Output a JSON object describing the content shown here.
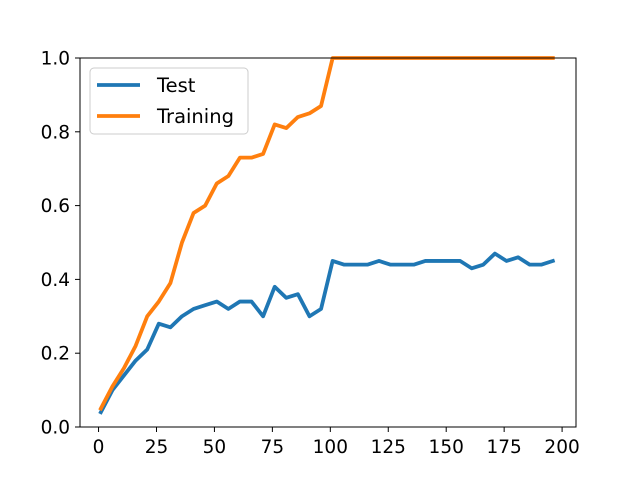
{
  "chart_data": {
    "type": "line",
    "xlim": [
      -8,
      206
    ],
    "ylim": [
      0,
      1
    ],
    "x_ticks": [
      0,
      25,
      50,
      75,
      100,
      125,
      150,
      175,
      200
    ],
    "x_tick_labels": [
      "0",
      "25",
      "50",
      "75",
      "100",
      "125",
      "150",
      "175",
      "200"
    ],
    "y_ticks": [
      0,
      0.2,
      0.4,
      0.6,
      0.8,
      1.0
    ],
    "y_tick_labels": [
      "0.0",
      "0.2",
      "0.4",
      "0.6",
      "0.8",
      "1.0"
    ],
    "grid": false,
    "legend_position": "top-left",
    "series": [
      {
        "name": "Test",
        "color": "#1f77b4",
        "x": [
          1,
          6,
          11,
          16,
          21,
          26,
          31,
          36,
          41,
          46,
          51,
          56,
          61,
          66,
          71,
          76,
          81,
          86,
          91,
          96,
          101,
          106,
          111,
          116,
          121,
          126,
          131,
          136,
          141,
          146,
          151,
          156,
          161,
          166,
          171,
          176,
          181,
          186,
          191,
          196
        ],
        "y": [
          0.04,
          0.1,
          0.14,
          0.18,
          0.21,
          0.28,
          0.27,
          0.3,
          0.32,
          0.33,
          0.34,
          0.32,
          0.34,
          0.34,
          0.3,
          0.38,
          0.35,
          0.36,
          0.3,
          0.32,
          0.45,
          0.44,
          0.44,
          0.44,
          0.45,
          0.44,
          0.44,
          0.44,
          0.45,
          0.45,
          0.45,
          0.45,
          0.43,
          0.44,
          0.47,
          0.45,
          0.46,
          0.44,
          0.44,
          0.45
        ]
      },
      {
        "name": "Training",
        "color": "#ff7f0e",
        "x": [
          1,
          6,
          11,
          16,
          21,
          26,
          31,
          36,
          41,
          46,
          51,
          56,
          61,
          66,
          71,
          76,
          81,
          86,
          91,
          96,
          101,
          106,
          111,
          116,
          121,
          126,
          131,
          136,
          141,
          146,
          151,
          156,
          161,
          166,
          171,
          176,
          181,
          186,
          191,
          196
        ],
        "y": [
          0.05,
          0.11,
          0.16,
          0.22,
          0.3,
          0.34,
          0.39,
          0.5,
          0.58,
          0.6,
          0.66,
          0.68,
          0.73,
          0.73,
          0.74,
          0.82,
          0.81,
          0.84,
          0.85,
          0.87,
          1.0,
          1.0,
          1.0,
          1.0,
          1.0,
          1.0,
          1.0,
          1.0,
          1.0,
          1.0,
          1.0,
          1.0,
          1.0,
          1.0,
          1.0,
          1.0,
          1.0,
          1.0,
          1.0,
          1.0
        ]
      }
    ]
  }
}
